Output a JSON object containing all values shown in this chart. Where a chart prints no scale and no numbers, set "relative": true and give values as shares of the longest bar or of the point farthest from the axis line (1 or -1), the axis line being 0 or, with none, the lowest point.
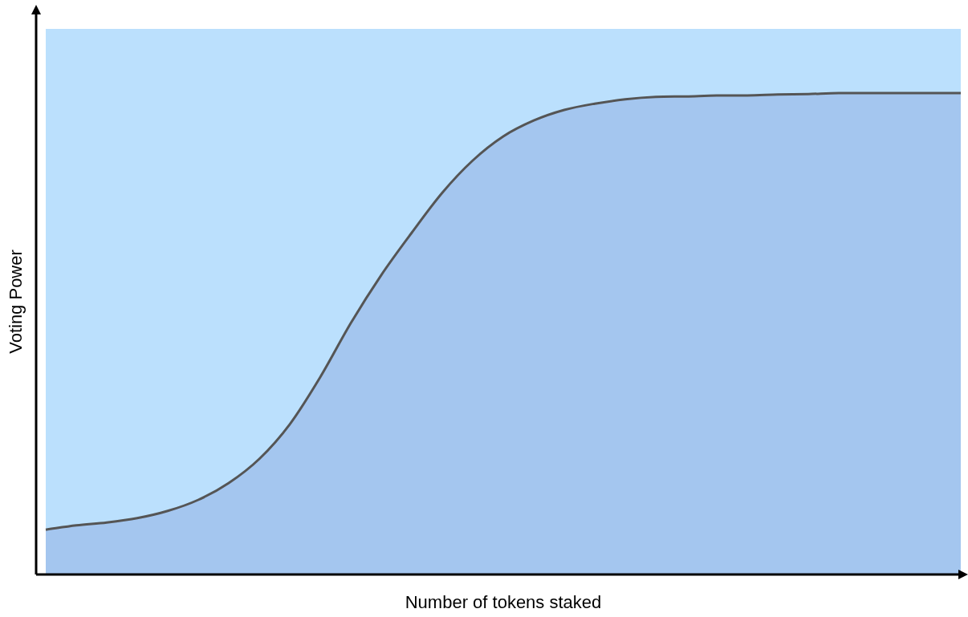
{
  "chart_data": {
    "type": "area",
    "relative": true,
    "xlabel": "Number of tokens staked",
    "ylabel": "Voting Power",
    "categories": [
      null,
      null,
      null,
      null,
      null,
      null,
      null,
      null,
      null,
      null,
      null,
      null,
      null,
      null,
      null,
      null,
      null,
      null,
      null,
      null,
      null,
      null,
      null,
      null,
      null,
      null,
      null,
      null,
      null,
      null,
      null
    ],
    "series": [
      {
        "color": "#a4c6ef",
        "values": [
          0.093,
          0.102,
          0.108,
          0.117,
          0.132,
          0.155,
          0.19,
          0.24,
          0.312,
          0.41,
          0.522,
          0.622,
          0.71,
          0.793,
          0.86,
          0.91,
          0.943,
          0.965,
          0.978,
          0.987,
          0.992,
          0.993,
          0.995,
          0.995,
          0.997,
          0.998,
          1,
          1,
          1,
          1,
          1
        ]
      }
    ],
    "grid": false,
    "legend": false
  }
}
